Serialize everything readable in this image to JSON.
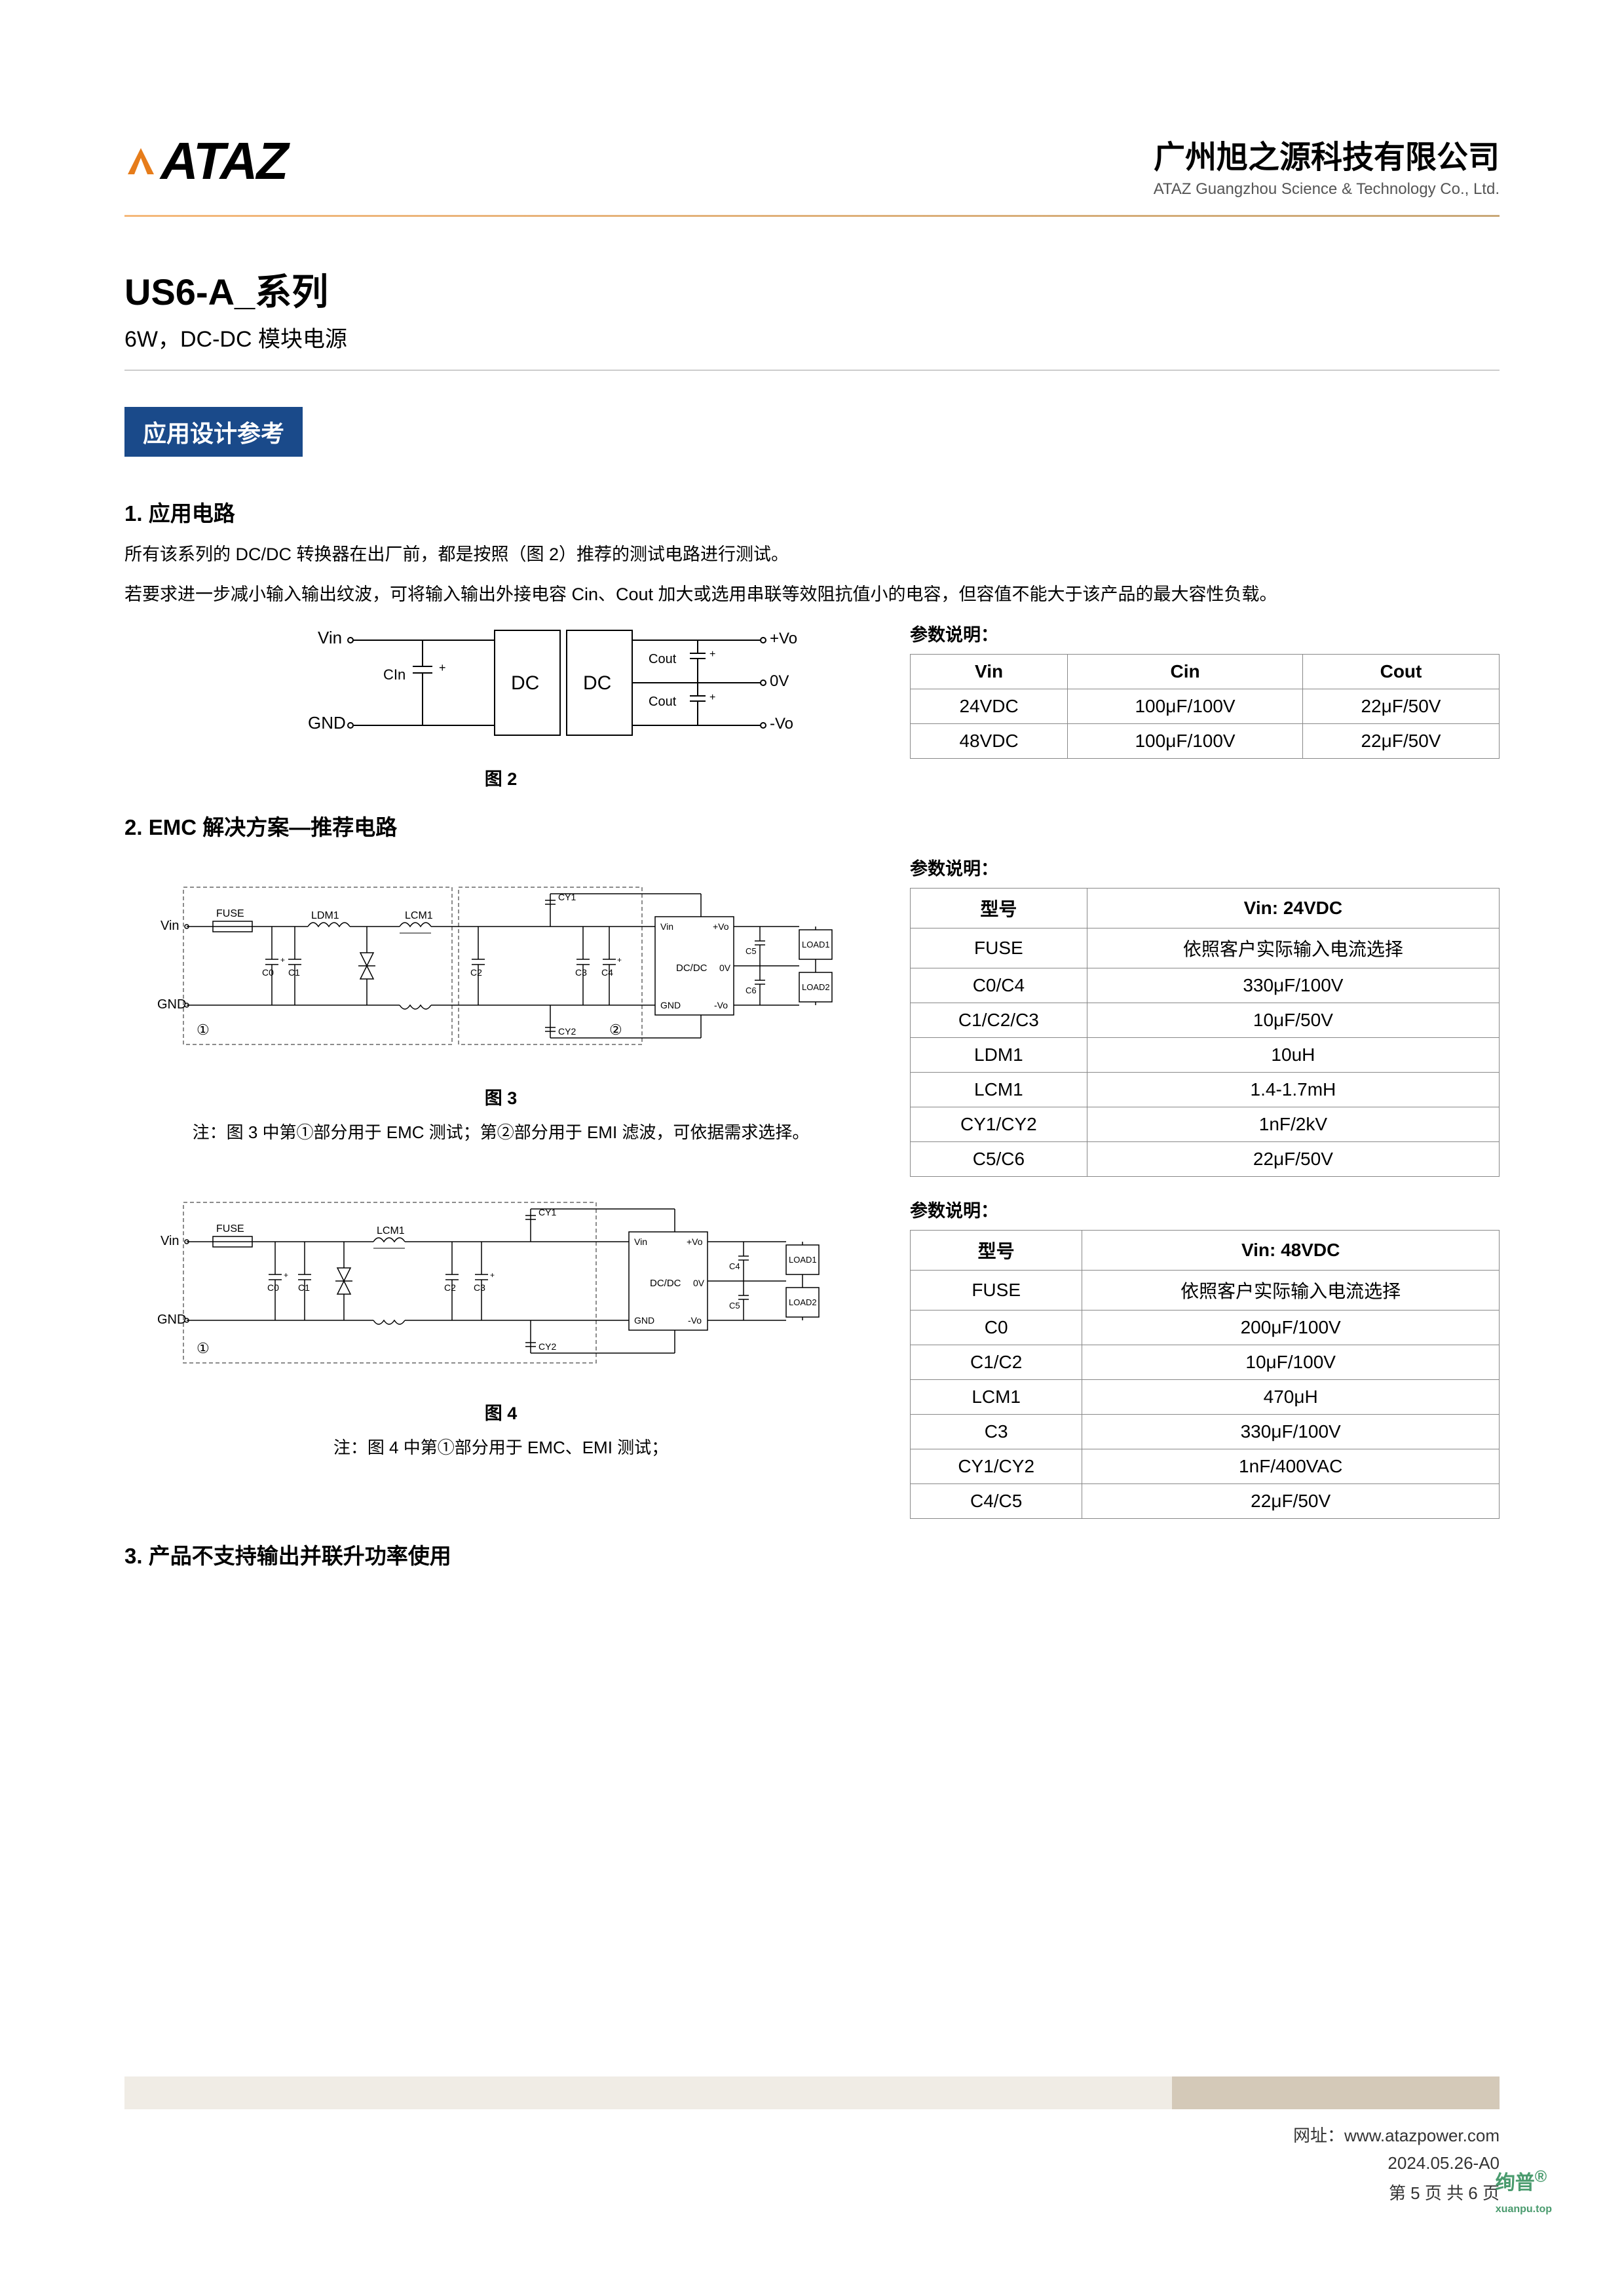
{
  "header": {
    "logo_text": "ATAZ",
    "company_cn": "广州旭之源科技有限公司",
    "company_en": "ATAZ Guangzhou Science & Technology Co., Ltd."
  },
  "product": {
    "name": "US6-A_系列",
    "desc": "6W，DC-DC 模块电源"
  },
  "section_header": "应用设计参考",
  "section1": {
    "title": "1. 应用电路",
    "text1": "所有该系列的 DC/DC 转换器在出厂前，都是按照（图 2）推荐的测试电路进行测试。",
    "text2": "若要求进一步减小输入输出纹波，可将输入输出外接电容 Cin、Cout 加大或选用串联等效阻抗值小的电容，但容值不能大于该产品的最大容性负载。",
    "caption": "图 2",
    "diagram": {
      "labels": {
        "vin": "Vin",
        "cin": "CIn",
        "gnd": "GND",
        "dc1": "DC",
        "dc2": "DC",
        "cout": "Cout",
        "vo_plus": "+Vo",
        "zero_v": "0V",
        "vo_minus": "-Vo"
      }
    },
    "param_label": "参数说明：",
    "table": {
      "headers": [
        "Vin",
        "Cin",
        "Cout"
      ],
      "rows": [
        [
          "24VDC",
          "100μF/100V",
          "22μF/50V"
        ],
        [
          "48VDC",
          "100μF/100V",
          "22μF/50V"
        ]
      ]
    }
  },
  "section2": {
    "title": "2. EMC 解决方案—推荐电路",
    "caption3": "图 3",
    "note3": "注：图 3 中第①部分用于 EMC 测试；第②部分用于 EMI 滤波，可依据需求选择。",
    "caption4": "图 4",
    "note4": "注：图 4 中第①部分用于 EMC、EMI 测试；",
    "param_label": "参数说明：",
    "diagram_labels": {
      "vin": "Vin",
      "gnd": "GND",
      "fuse": "FUSE",
      "ldm1": "LDM1",
      "lcm1": "LCM1",
      "cy1": "CY1",
      "cy2": "CY2",
      "c0": "C0",
      "c1": "C1",
      "c2": "C2",
      "c3": "C3",
      "c4": "C4",
      "c5": "C5",
      "c6": "C6",
      "dcdc": "DC/DC",
      "vin2": "Vin",
      "vo_plus": "+Vo",
      "zero_v": "0V",
      "vo_minus": "-Vo",
      "gnd2": "GND",
      "load1": "LOAD1",
      "load2": "LOAD2",
      "circ1": "①",
      "circ2": "②"
    },
    "table3": {
      "headers": [
        "型号",
        "Vin: 24VDC"
      ],
      "rows": [
        [
          "FUSE",
          "依照客户实际输入电流选择"
        ],
        [
          "C0/C4",
          "330μF/100V"
        ],
        [
          "C1/C2/C3",
          "10μF/50V"
        ],
        [
          "LDM1",
          "10uH"
        ],
        [
          "LCM1",
          "1.4-1.7mH"
        ],
        [
          "CY1/CY2",
          "1nF/2kV"
        ],
        [
          "C5/C6",
          "22μF/50V"
        ]
      ]
    },
    "table4": {
      "headers": [
        "型号",
        "Vin: 48VDC"
      ],
      "rows": [
        [
          "FUSE",
          "依照客户实际输入电流选择"
        ],
        [
          "C0",
          "200μF/100V"
        ],
        [
          "C1/C2",
          "10μF/100V"
        ],
        [
          "LCM1",
          "470μH"
        ],
        [
          "C3",
          "330μF/100V"
        ],
        [
          "CY1/CY2",
          "1nF/400VAC"
        ],
        [
          "C4/C5",
          "22μF/50V"
        ]
      ]
    }
  },
  "section3": {
    "title": "3. 产品不支持输出并联升功率使用"
  },
  "footer": {
    "url_label": "网址：",
    "url": "www.atazpower.com",
    "date": "2024.05.26-A0",
    "page": "第 5 页 共 6 页"
  },
  "watermark": {
    "main": "绚普",
    "reg": "®",
    "sub": "xuanpu.top"
  },
  "colors": {
    "section_bg": "#1a4a8a",
    "border": "#888888",
    "text": "#000000",
    "accent_orange": "#f5b87a",
    "watermark": "#4a9b6e"
  }
}
